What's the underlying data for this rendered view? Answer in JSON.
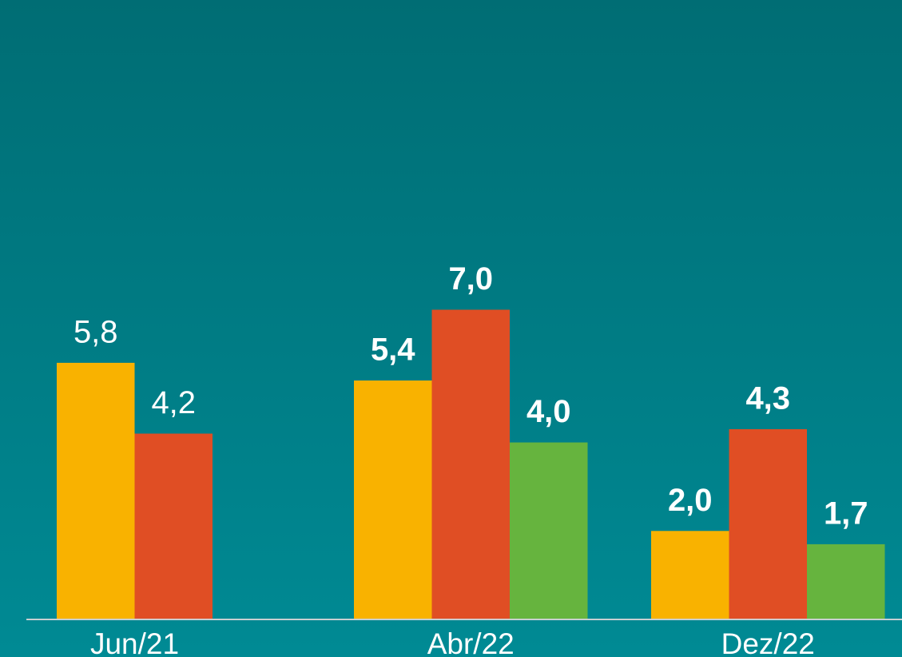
{
  "chart_data": {
    "type": "bar",
    "categories": [
      "Jun/21",
      "Abr/22",
      "Dez/22"
    ],
    "series": [
      {
        "color": "#f9b200",
        "values": [
          5.8,
          5.4,
          2.0
        ],
        "value_labels": [
          "5,8",
          "5,4",
          "2,0"
        ]
      },
      {
        "color": "#e04e24",
        "values": [
          4.2,
          7.0,
          4.3
        ],
        "value_labels": [
          "4,2",
          "7,0",
          "4,3"
        ]
      },
      {
        "color": "#66b43e",
        "values": [
          null,
          4.0,
          1.7
        ],
        "value_labels": [
          null,
          "4,0",
          "1,7"
        ]
      }
    ],
    "label_bold": [
      false,
      true,
      true
    ],
    "ylim": [
      0,
      14
    ]
  }
}
